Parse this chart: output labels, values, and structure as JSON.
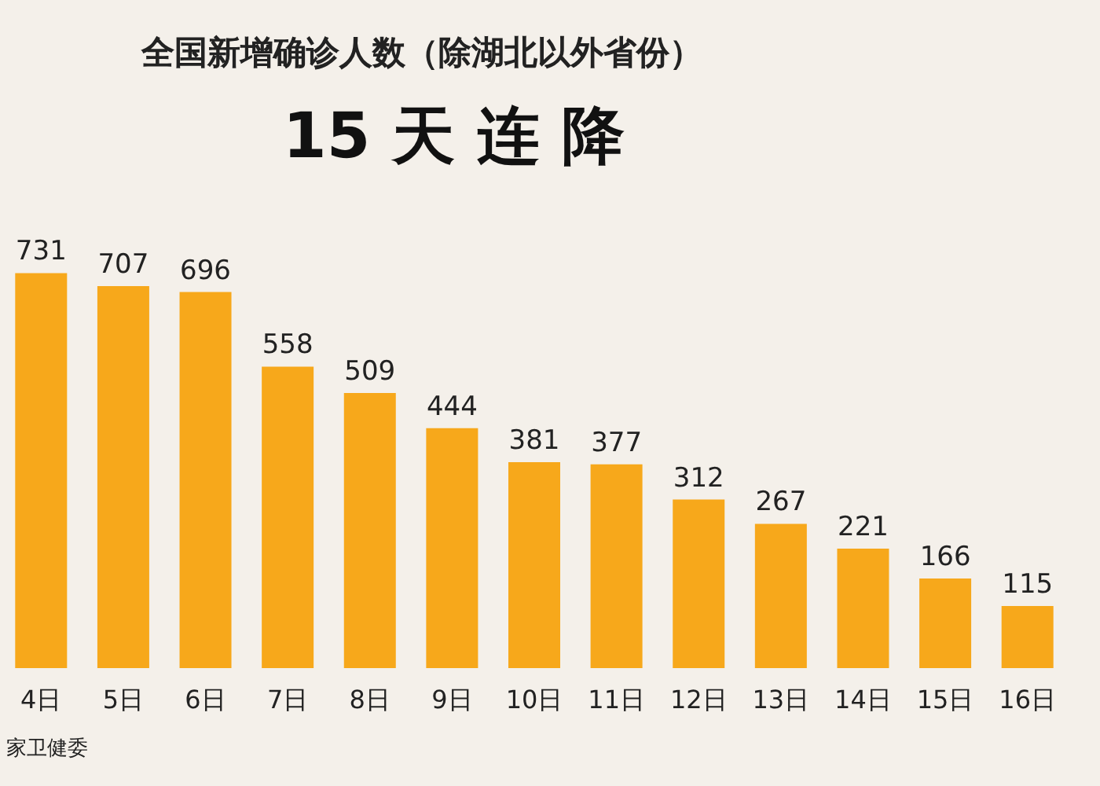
{
  "chart_data": {
    "type": "bar",
    "title": "全国新增确诊人数（除湖北以外省份）",
    "subtitle": "15 天 连 降",
    "categories": [
      "4日",
      "5日",
      "6日",
      "7日",
      "8日",
      "9日",
      "10日",
      "11日",
      "12日",
      "13日",
      "14日",
      "15日",
      "16日"
    ],
    "values": [
      731,
      707,
      696,
      558,
      509,
      444,
      381,
      377,
      312,
      267,
      221,
      166,
      115
    ],
    "color": "#f7a81b",
    "data_labels": true,
    "annotations": [
      "家卫健委"
    ]
  }
}
